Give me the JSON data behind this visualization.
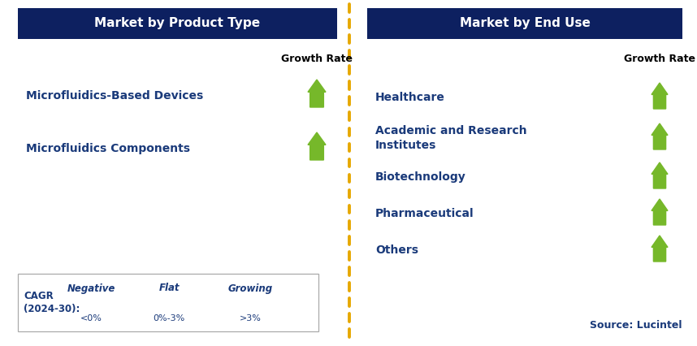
{
  "left_title": "Market by Product Type",
  "right_title": "Market by End Use",
  "header_bg": "#0d2060",
  "header_fg": "#ffffff",
  "left_items": [
    "Microfluidics-Based Devices",
    "Microfluidics Components"
  ],
  "right_items": [
    "Healthcare",
    "Academic and Research\nInstitutes",
    "Biotechnology",
    "Pharmaceutical",
    "Others"
  ],
  "item_color": "#1a3a7a",
  "growth_rate_label": "Growth Rate",
  "green_arrow_color": "#76b82a",
  "red_arrow_color": "#cc0000",
  "orange_arrow_color": "#e6a800",
  "legend_items": [
    {
      "label": "Negative",
      "sublabel": "<0%",
      "color": "#cc0000",
      "direction": "down"
    },
    {
      "label": "Flat",
      "sublabel": "0%-3%",
      "color": "#e6a800",
      "direction": "right"
    },
    {
      "label": "Growing",
      "sublabel": ">3%",
      "color": "#76b82a",
      "direction": "up"
    }
  ],
  "legend_prefix_line1": "CAGR",
  "legend_prefix_line2": "(2024-30):",
  "source_text": "Source: Lucintel",
  "dashed_line_color": "#e6a800",
  "bg_color": "#ffffff",
  "fig_w": 8.58,
  "fig_h": 4.26,
  "dpi": 100
}
